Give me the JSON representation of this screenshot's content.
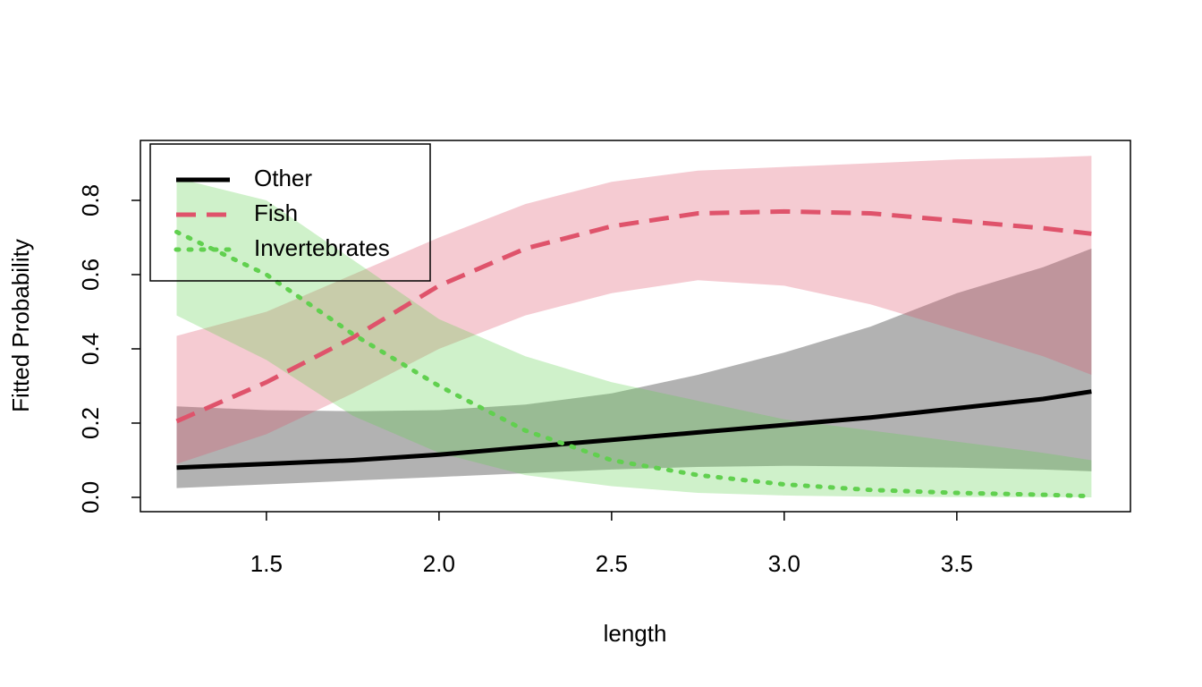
{
  "chart_data": {
    "type": "line",
    "xlabel": "length",
    "ylabel": "Fitted Probability",
    "x": [
      1.24,
      1.5,
      1.75,
      2.0,
      2.25,
      2.5,
      2.75,
      3.0,
      3.25,
      3.5,
      3.75,
      3.89
    ],
    "series": [
      {
        "name": "Other",
        "color": "#000000",
        "linestyle": "solid",
        "values": [
          0.08,
          0.09,
          0.1,
          0.115,
          0.135,
          0.155,
          0.175,
          0.195,
          0.215,
          0.24,
          0.265,
          0.285
        ],
        "lower": [
          0.025,
          0.035,
          0.045,
          0.055,
          0.065,
          0.075,
          0.082,
          0.085,
          0.083,
          0.08,
          0.075,
          0.07
        ],
        "upper": [
          0.245,
          0.235,
          0.232,
          0.235,
          0.25,
          0.28,
          0.33,
          0.39,
          0.46,
          0.55,
          0.62,
          0.67
        ]
      },
      {
        "name": "Fish",
        "color": "#DF536B",
        "linestyle": "dashed",
        "values": [
          0.205,
          0.31,
          0.43,
          0.57,
          0.67,
          0.73,
          0.765,
          0.77,
          0.765,
          0.745,
          0.725,
          0.71
        ],
        "lower": [
          0.09,
          0.17,
          0.28,
          0.4,
          0.49,
          0.55,
          0.585,
          0.57,
          0.52,
          0.45,
          0.38,
          0.33
        ],
        "upper": [
          0.435,
          0.5,
          0.6,
          0.7,
          0.79,
          0.85,
          0.88,
          0.89,
          0.9,
          0.91,
          0.915,
          0.92
        ]
      },
      {
        "name": "Invertebrates",
        "color": "#61D04F",
        "linestyle": "dotted",
        "values": [
          0.715,
          0.6,
          0.44,
          0.3,
          0.18,
          0.1,
          0.06,
          0.035,
          0.02,
          0.012,
          0.007,
          0.003
        ],
        "lower": [
          0.49,
          0.37,
          0.22,
          0.12,
          0.06,
          0.03,
          0.012,
          0.005,
          0.002,
          0.001,
          0.0005,
          0.0
        ],
        "upper": [
          0.86,
          0.8,
          0.64,
          0.48,
          0.38,
          0.31,
          0.26,
          0.21,
          0.18,
          0.15,
          0.12,
          0.1
        ]
      }
    ],
    "band_opacity": 0.3,
    "xlim": [
      1.135,
      4.003
    ],
    "ylim": [
      -0.0386,
      0.9614
    ],
    "xticks": [
      1.5,
      {
        "value": 2,
        "label": "2.0"
      },
      2.5,
      {
        "value": 3,
        "label": "3.0"
      },
      3.5
    ],
    "yticks": [
      {
        "value": 0,
        "label": "0.0"
      },
      0.2,
      0.4,
      0.6,
      0.8
    ],
    "legend": "topleft"
  }
}
